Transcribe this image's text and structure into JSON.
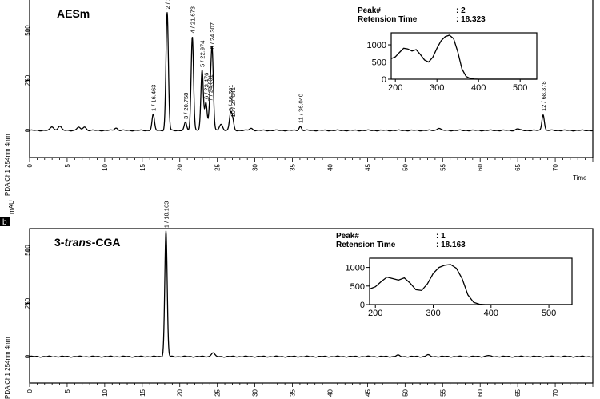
{
  "panel_letter": "b",
  "chart_data": [
    {
      "type": "line",
      "sample_label": "AESm",
      "ylabel": "PDA Ch1 254nm 4nm",
      "xlabel": "Time",
      "xlim": [
        0,
        75
      ],
      "ylim": [
        -25,
        700
      ],
      "y_ticks": [
        0,
        250,
        500
      ],
      "x_ticks": [
        0,
        5,
        10,
        15,
        20,
        25,
        30,
        35,
        40,
        45,
        50,
        55,
        60,
        65,
        70
      ],
      "peak_info": {
        "peak_label": "Peak#",
        "peak_value": ": 2",
        "rt_label": "Retension Time",
        "rt_value": ": 18.323"
      },
      "peaks": [
        {
          "label": "1 / 16.463",
          "x": 16.46,
          "y": 80
        },
        {
          "label": "2 / 18.323",
          "x": 18.32,
          "y": 590
        },
        {
          "label": "3 / 20.758",
          "x": 20.76,
          "y": 40
        },
        {
          "label": "4 / 21.673",
          "x": 21.67,
          "y": 470
        },
        {
          "label": "5 / 22.974",
          "x": 22.97,
          "y": 300
        },
        {
          "label": "6 / 23.476",
          "x": 23.48,
          "y": 140
        },
        {
          "label": "7 / 24.031",
          "x": 24.03,
          "y": 130
        },
        {
          "label": "8 / 24.307",
          "x": 24.31,
          "y": 390
        },
        {
          "label": "9 / 26.761",
          "x": 26.76,
          "y": 80
        },
        {
          "label": "10 / 27.041",
          "x": 27.04,
          "y": 50
        },
        {
          "label": "11 / 36.040",
          "x": 36.04,
          "y": 20
        },
        {
          "label": "12 / 68.378",
          "x": 68.38,
          "y": 80
        }
      ],
      "minor_peaks": [
        {
          "x": 3.0,
          "y": 18
        },
        {
          "x": 4.0,
          "y": 22
        },
        {
          "x": 6.5,
          "y": 15
        },
        {
          "x": 7.3,
          "y": 18
        },
        {
          "x": 11.5,
          "y": 12
        },
        {
          "x": 25.5,
          "y": 30
        },
        {
          "x": 29.5,
          "y": 10
        },
        {
          "x": 54.5,
          "y": 12
        },
        {
          "x": 65.0,
          "y": 8
        }
      ],
      "inset": {
        "x_ticks": [
          200,
          300,
          400,
          500
        ],
        "y_ticks": [
          0,
          500,
          1000
        ],
        "xlim": [
          190,
          540
        ],
        "ylim": [
          0,
          1350
        ],
        "x": [
          190,
          200,
          210,
          220,
          230,
          240,
          250,
          260,
          270,
          280,
          290,
          300,
          310,
          320,
          330,
          340,
          350,
          360,
          370,
          380,
          390,
          400,
          540
        ],
        "y": [
          600,
          650,
          780,
          900,
          880,
          820,
          860,
          720,
          560,
          500,
          640,
          900,
          1120,
          1240,
          1280,
          1180,
          800,
          300,
          80,
          20,
          5,
          0,
          0
        ]
      }
    },
    {
      "type": "line",
      "sample_label_prefix": "3-",
      "sample_label_italic": "trans",
      "sample_label_suffix": "-CGA",
      "unit_label": "mAU",
      "ylabel": "PDA Ch1 254nm 4nm",
      "xlim": [
        0,
        75
      ],
      "ylim": [
        -25,
        700
      ],
      "y_ticks": [
        0,
        250,
        500
      ],
      "x_ticks": [
        0,
        5,
        10,
        15,
        20,
        25,
        30,
        35,
        40,
        45,
        50,
        55,
        60,
        65,
        70
      ],
      "peak_info": {
        "peak_label": "Peak#",
        "peak_value": ": 1",
        "rt_label": "Retension Time",
        "rt_value": ": 18.163"
      },
      "peaks": [
        {
          "label": "1 / 18.163",
          "x": 18.16,
          "y": 590
        }
      ],
      "minor_peaks": [
        {
          "x": 24.4,
          "y": 18
        },
        {
          "x": 49.0,
          "y": 6
        },
        {
          "x": 53.0,
          "y": 8
        },
        {
          "x": 61.0,
          "y": 5
        }
      ],
      "inset": {
        "x_ticks": [
          200,
          300,
          400,
          500
        ],
        "y_ticks": [
          0,
          500,
          1000
        ],
        "xlim": [
          190,
          540
        ],
        "ylim": [
          0,
          1250
        ],
        "x": [
          190,
          200,
          210,
          220,
          230,
          240,
          250,
          260,
          270,
          280,
          290,
          300,
          310,
          320,
          330,
          340,
          350,
          360,
          370,
          380,
          390,
          400,
          540
        ],
        "y": [
          420,
          480,
          620,
          740,
          700,
          660,
          720,
          580,
          400,
          380,
          560,
          840,
          1000,
          1060,
          1080,
          980,
          700,
          260,
          60,
          10,
          0,
          0,
          0
        ]
      }
    }
  ]
}
